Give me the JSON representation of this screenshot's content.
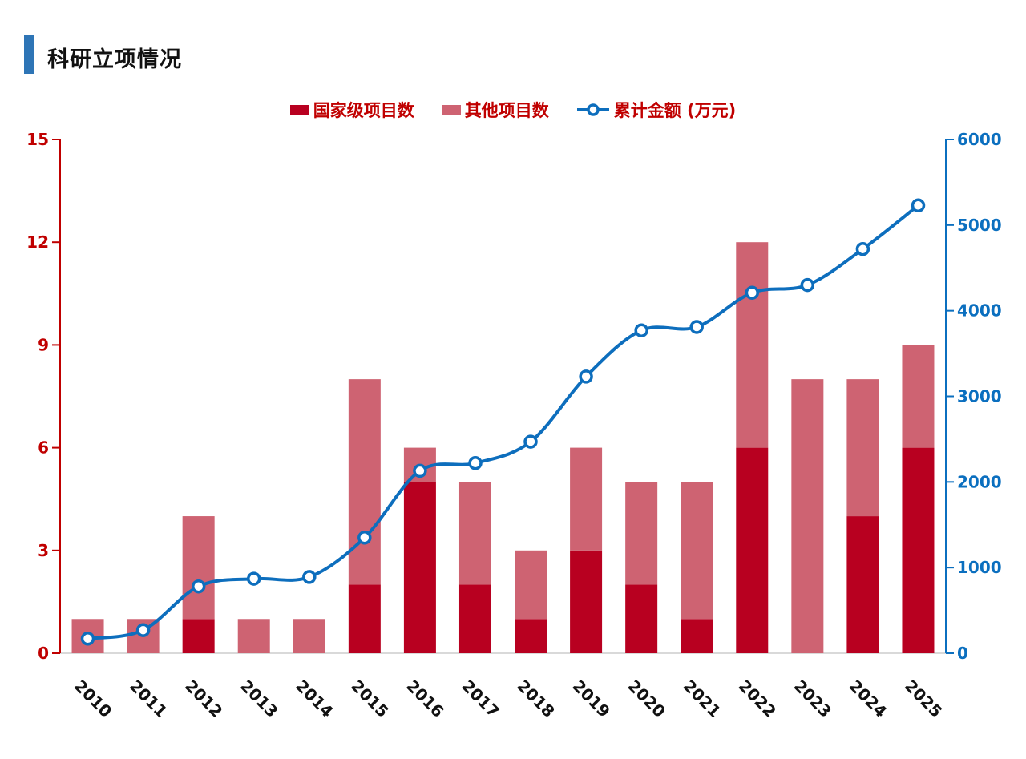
{
  "header": {
    "title": "科研立项情况",
    "accent_color": "#2E75B6"
  },
  "legend": {
    "items": [
      {
        "label": "国家级项目数",
        "marker": "square",
        "color": "#B80020"
      },
      {
        "label": "其他项目数",
        "marker": "square",
        "color": "#CE6372"
      },
      {
        "label": "累计金额 (万元)",
        "marker": "line-circle",
        "color": "#0D6EBD"
      }
    ]
  },
  "chart_data": {
    "type": "bar",
    "subtype": "stacked-bars-with-line",
    "title": "科研立项情况",
    "categories": [
      "2010",
      "2011",
      "2012",
      "2013",
      "2014",
      "2015",
      "2016",
      "2017",
      "2018",
      "2019",
      "2020",
      "2021",
      "2022",
      "2023",
      "2024",
      "2025"
    ],
    "series": [
      {
        "name": "国家级项目数",
        "type": "bar",
        "stack": "projects",
        "color": "#B80020",
        "axis": "left",
        "values": [
          0,
          0,
          1,
          0,
          0,
          2,
          5,
          2,
          1,
          3,
          2,
          1,
          6,
          0,
          4,
          6
        ]
      },
      {
        "name": "其他项目数",
        "type": "bar",
        "stack": "projects",
        "color": "#CE6372",
        "axis": "left",
        "values": [
          1,
          1,
          3,
          1,
          1,
          6,
          1,
          3,
          2,
          3,
          3,
          4,
          6,
          8,
          4,
          3
        ]
      },
      {
        "name": "累计金额 (万元)",
        "type": "line",
        "color": "#0D6EBD",
        "axis": "right",
        "marker": "open-circle",
        "values": [
          170,
          270,
          780,
          870,
          890,
          1350,
          2130,
          2220,
          2470,
          3230,
          3770,
          3810,
          4210,
          4300,
          4720,
          5230
        ]
      }
    ],
    "left_axis": {
      "ticks": [
        0,
        3,
        6,
        9,
        12,
        15
      ],
      "range": [
        0,
        15
      ],
      "line_color": "#C00000",
      "text_color": "#C00000"
    },
    "right_axis": {
      "ticks": [
        0,
        1000,
        2000,
        3000,
        4000,
        5000,
        6000
      ],
      "range": [
        0,
        6000
      ],
      "line_color": "#0B6FBF",
      "text_color": "#0B6FBF"
    },
    "x_axis": {
      "line_color": "#D9D9D9",
      "text_color": "#111111",
      "label_rotation_deg": 45
    },
    "grid": false,
    "legend_position": "top"
  }
}
